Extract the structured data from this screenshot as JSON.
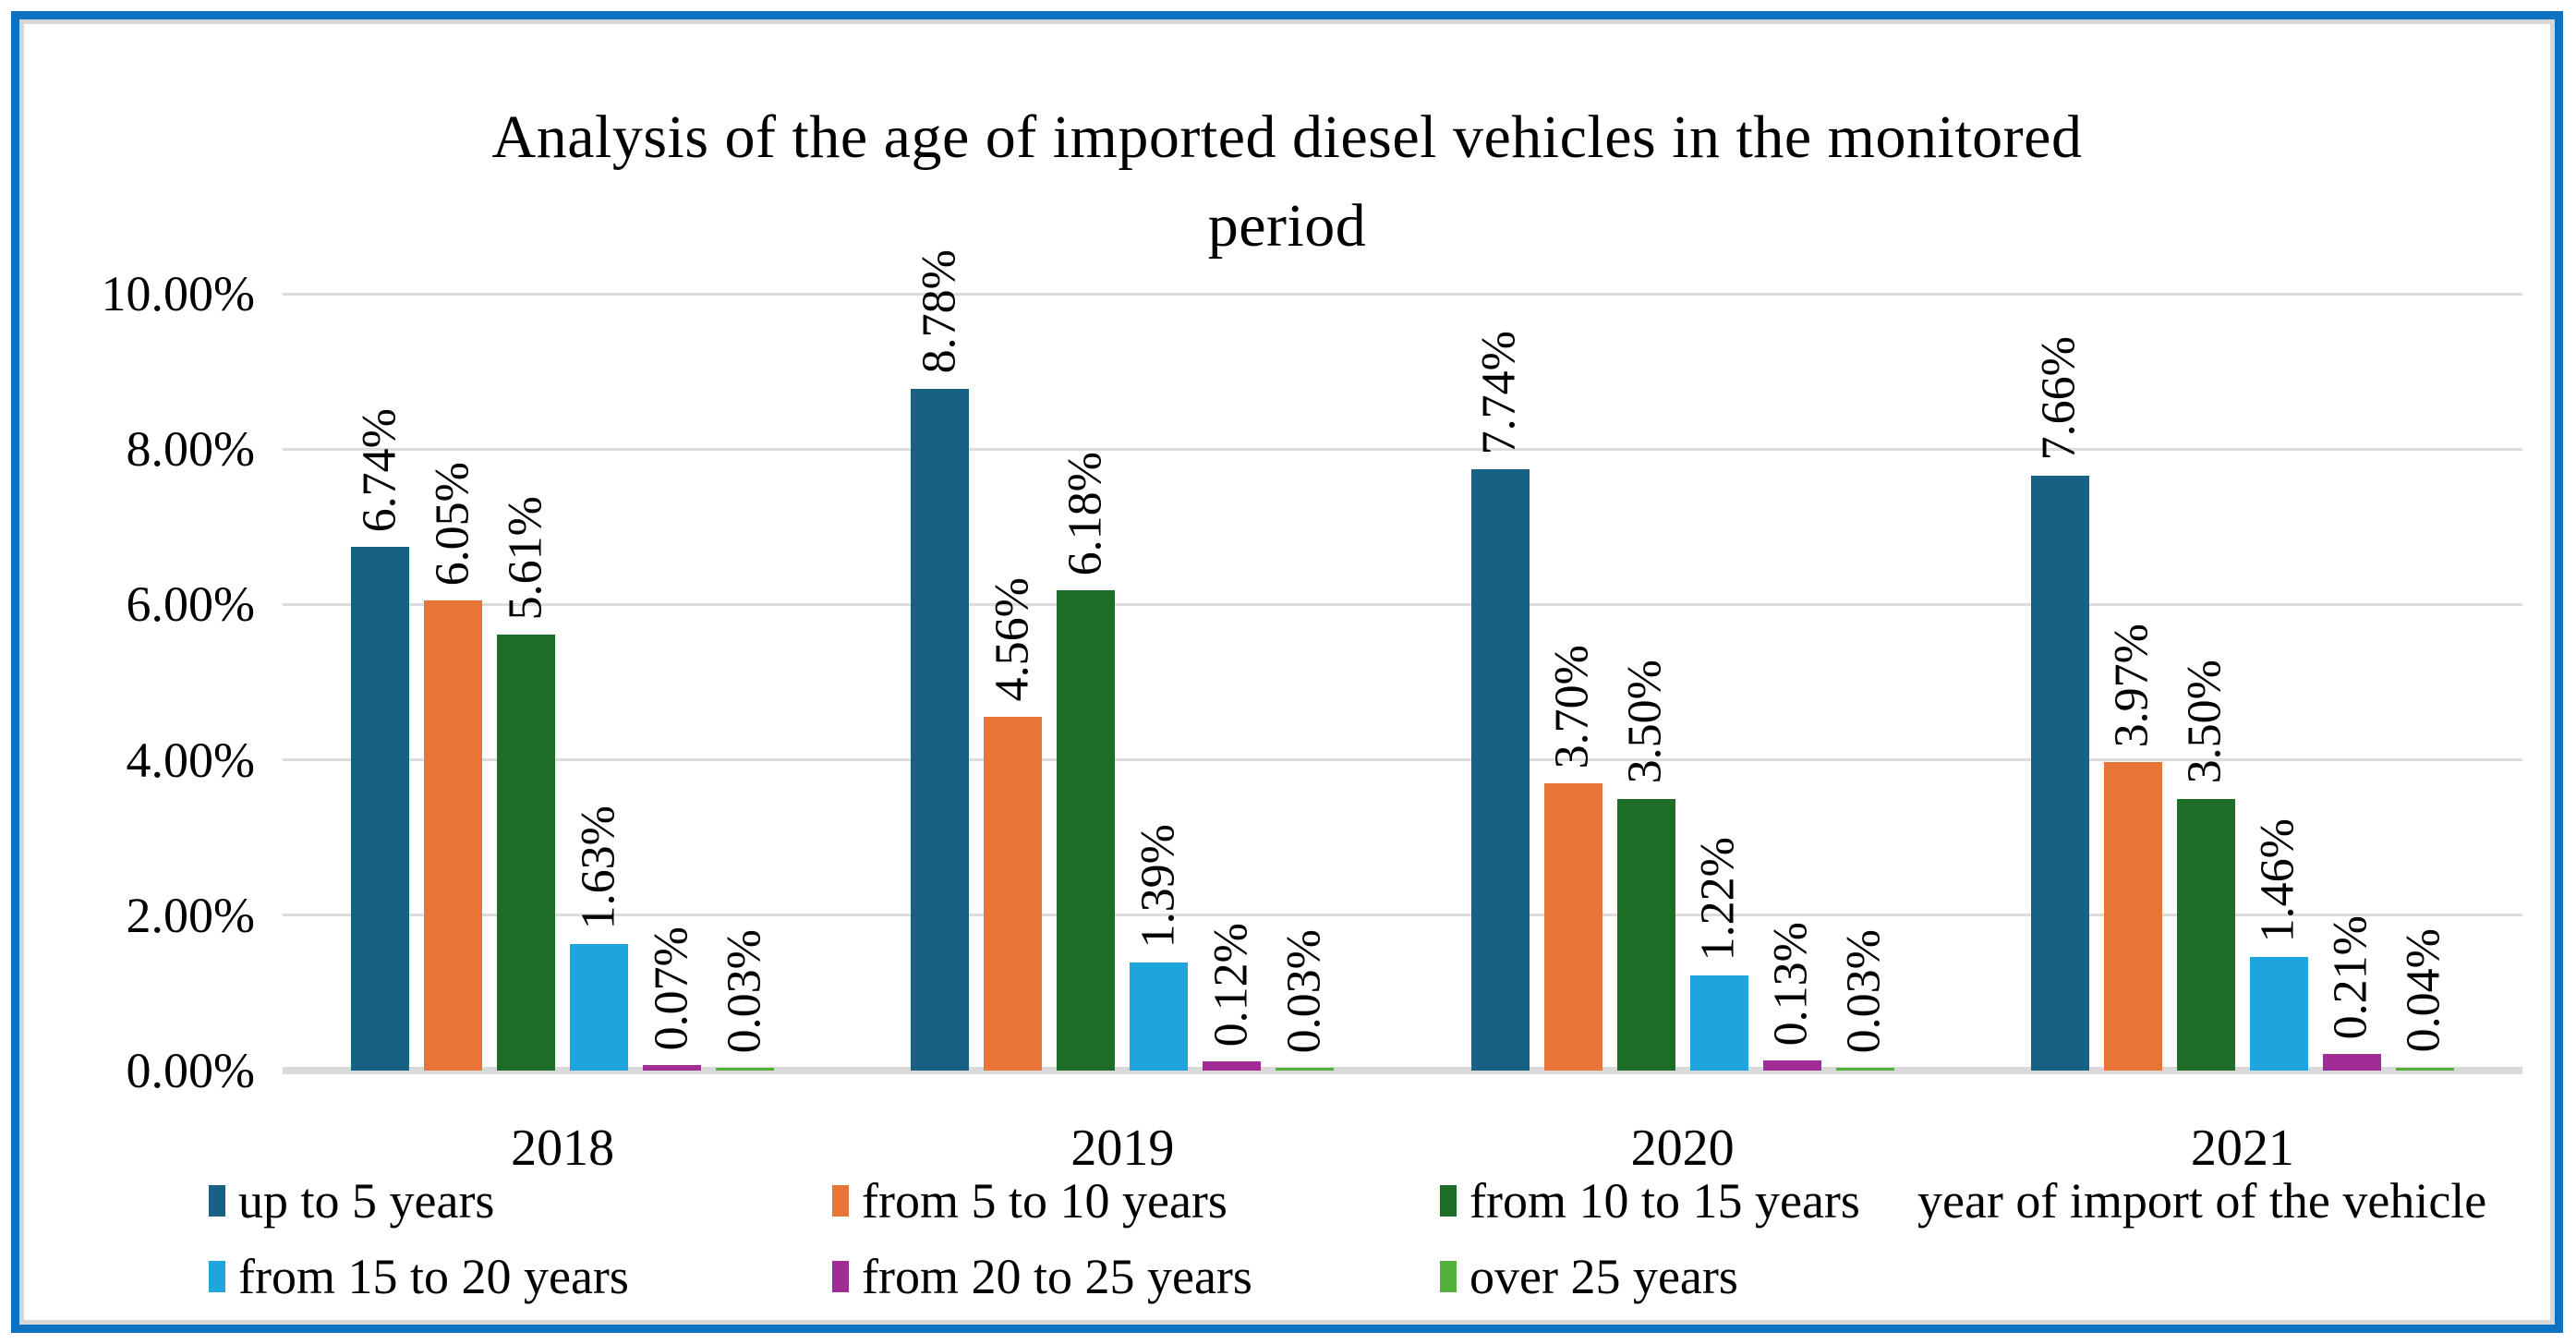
{
  "frame": {
    "border_color": "#0d72c2",
    "inner_shadow_color": "#d6d6d6",
    "background": "#ffffff"
  },
  "chart_data": {
    "type": "bar",
    "title": "Analysis of the age of imported diesel vehicles in the monitored period",
    "title_lines": [
      "Analysis of the age of imported diesel vehicles in the monitored",
      "period"
    ],
    "categories": [
      "2018",
      "2019",
      "2020",
      "2021"
    ],
    "series": [
      {
        "name": "up to 5 years",
        "color": "#166184",
        "values": [
          6.74,
          8.78,
          7.74,
          7.66
        ]
      },
      {
        "name": "from 5 to 10 years",
        "color": "#e87438",
        "values": [
          6.05,
          4.56,
          3.7,
          3.97
        ]
      },
      {
        "name": "from 10 to 15 years",
        "color": "#1e6e28",
        "values": [
          5.61,
          6.18,
          3.5,
          3.5
        ]
      },
      {
        "name": "from 15 to 20 years",
        "color": "#1ea5de",
        "values": [
          1.63,
          1.39,
          1.22,
          1.46
        ]
      },
      {
        "name": "from 20 to 25 years",
        "color": "#a12c96",
        "values": [
          0.07,
          0.12,
          0.13,
          0.21
        ]
      },
      {
        "name": "over 25 years",
        "color": "#52b13a",
        "values": [
          0.03,
          0.03,
          0.03,
          0.04
        ]
      }
    ],
    "data_labels": [
      [
        "6.74%",
        "8.78%",
        "7.74%",
        "7.66%"
      ],
      [
        "6.05%",
        "4.56%",
        "3.70%",
        "3.97%"
      ],
      [
        "5.61%",
        "6.18%",
        "3.50%",
        "3.50%"
      ],
      [
        "1.63%",
        "1.39%",
        "1.22%",
        "1.46%"
      ],
      [
        "0.07%",
        "0.12%",
        "0.13%",
        "0.21%"
      ],
      [
        "0.03%",
        "0.03%",
        "0.03%",
        "0.04%"
      ]
    ],
    "ylim": [
      0,
      10
    ],
    "y_ticks": [
      "0.00%",
      "2.00%",
      "4.00%",
      "6.00%",
      "8.00%",
      "10.00%"
    ],
    "xlabel": "year of import of the vehicle",
    "ylabel": "",
    "grid": true,
    "gridline_color": "#dcdcdc",
    "axis_line_color": "#d9d9d9",
    "legend_position": "bottom"
  }
}
